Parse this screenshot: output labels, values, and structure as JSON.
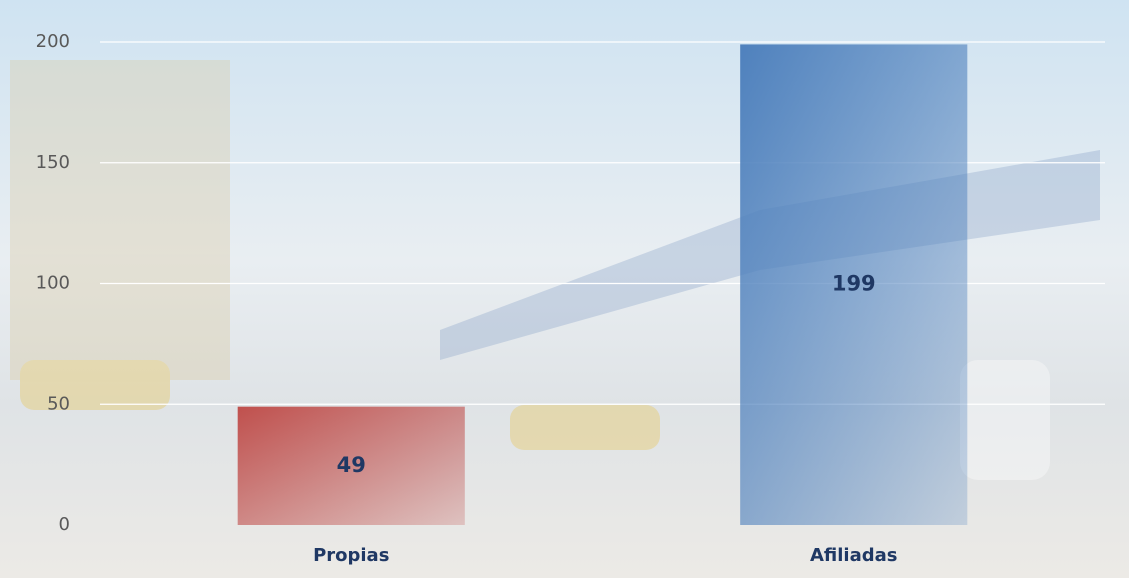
{
  "chart_data": {
    "type": "bar",
    "categories": [
      "Propias",
      "Afiliadas"
    ],
    "values": [
      49,
      199
    ],
    "colors": [
      "#c0504d",
      "#4f81bd"
    ],
    "ylim": [
      0,
      200
    ],
    "yticks": [
      0,
      50,
      100,
      150,
      200
    ],
    "grid": true
  }
}
